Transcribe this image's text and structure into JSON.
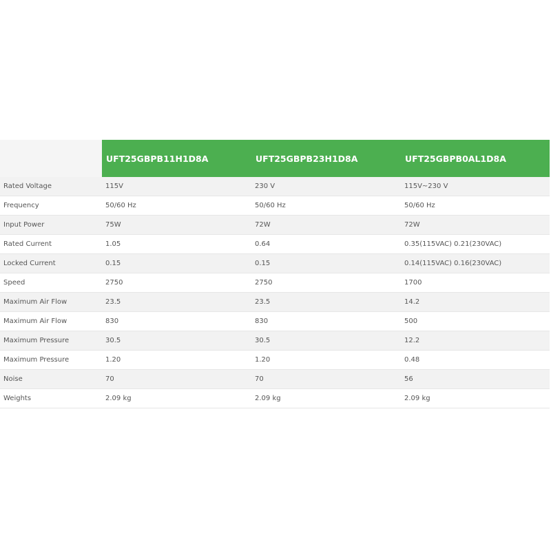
{
  "colors": {
    "header_bg": "#4caf50",
    "header_text": "#ffffff",
    "row_alt": "#f2f2f2"
  },
  "headers": [
    "UFT25GBPB11H1D8A",
    "UFT25GBPB23H1D8A",
    "UFT25GBPB0AL1D8A"
  ],
  "rows": [
    {
      "label": "Rated Voltage",
      "values": [
        "115V",
        "230 V",
        "115V~230 V"
      ]
    },
    {
      "label": "Frequency",
      "values": [
        "50/60 Hz",
        "50/60 Hz",
        "50/60 Hz"
      ]
    },
    {
      "label": "Input Power",
      "values": [
        "75W",
        "72W",
        "72W"
      ]
    },
    {
      "label": "Rated Current",
      "values": [
        "1.05",
        "0.64",
        "0.35(115VAC) 0.21(230VAC)"
      ]
    },
    {
      "label": "Locked Current",
      "values": [
        "0.15",
        "0.15",
        "0.14(115VAC) 0.16(230VAC)"
      ]
    },
    {
      "label": "Speed",
      "values": [
        "2750",
        "2750",
        "1700"
      ]
    },
    {
      "label": "Maximum Air Flow",
      "values": [
        "23.5",
        "23.5",
        "14.2"
      ]
    },
    {
      "label": "Maximum Air Flow",
      "values": [
        "830",
        "830",
        "500"
      ]
    },
    {
      "label": "Maximum Pressure",
      "values": [
        "30.5",
        "30.5",
        "12.2"
      ]
    },
    {
      "label": "Maximum Pressure",
      "values": [
        "1.20",
        "1.20",
        "0.48"
      ]
    },
    {
      "label": "Noise",
      "values": [
        "70",
        "70",
        "56"
      ]
    },
    {
      "label": "Weights",
      "values": [
        "2.09 kg",
        "2.09 kg",
        "2.09 kg"
      ]
    }
  ]
}
